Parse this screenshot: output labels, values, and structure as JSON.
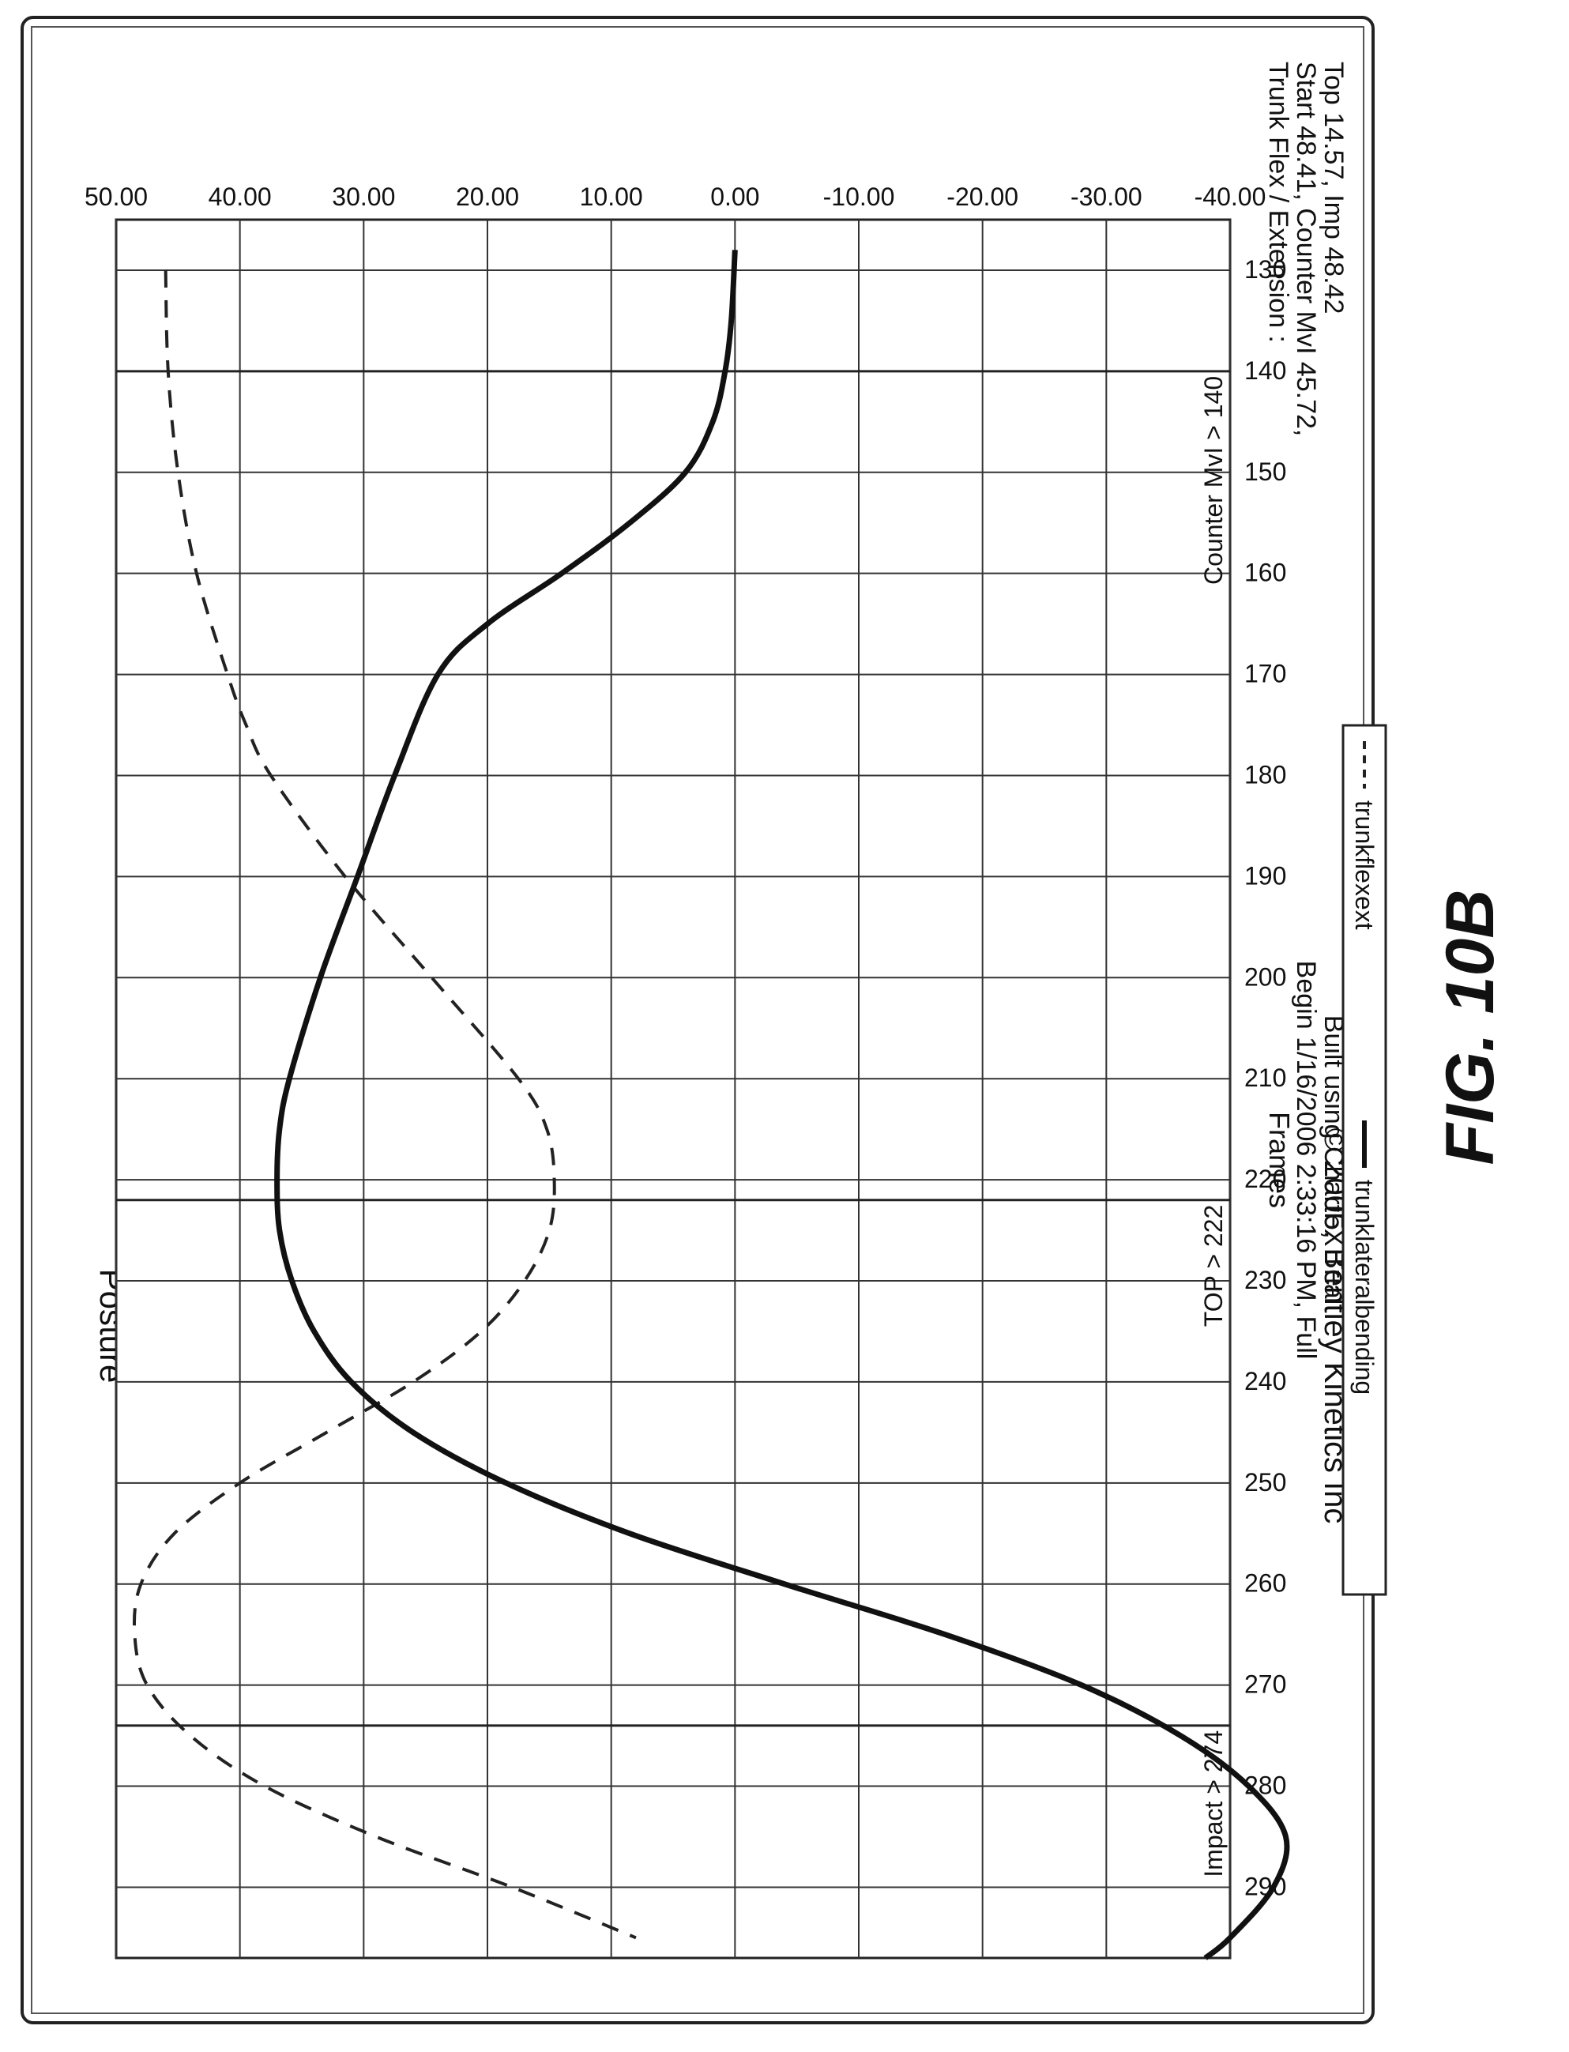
{
  "chart_data": {
    "type": "line",
    "copyright": "© 2006, Bentley Kinetics Inc",
    "title": "Posture",
    "xlabel": "Frames",
    "subtitle_lines": [
      "Begin 1/16/2006 2:33:16 PM, Full",
      "Built using ChartFX Trial"
    ],
    "info_lines": [
      "Trunk Flex / Extension :",
      "Start 48.41, Counter MvI 45.72,",
      "Top 14.57, Imp 48.42"
    ],
    "xlim": [
      125,
      297
    ],
    "ylim": [
      -40,
      50
    ],
    "x_ticks": [
      130,
      140,
      150,
      160,
      170,
      180,
      190,
      200,
      210,
      220,
      230,
      240,
      250,
      260,
      270,
      280,
      290
    ],
    "y_ticks": [
      50,
      40,
      30,
      20,
      10,
      0,
      -10,
      -20,
      -30,
      -40
    ],
    "y_tick_labels": [
      "50.00",
      "40.00",
      "30.00",
      "20.00",
      "10.00",
      "0.00",
      "-10.00",
      "-20.00",
      "-30.00",
      "-40.00"
    ],
    "markers": [
      {
        "x": 140,
        "label": "Counter MvI > 140"
      },
      {
        "x": 222,
        "label": "TOP > 222"
      },
      {
        "x": 274,
        "label": "Impact > 274"
      }
    ],
    "series": [
      {
        "name": "trunkflexext",
        "style": "dashed",
        "color": "#222222",
        "x": [
          130,
          140,
          150,
          160,
          170,
          175,
          180,
          190,
          200,
          210,
          215,
          220,
          225,
          230,
          235,
          240,
          245,
          250,
          255,
          260,
          265,
          270,
          275,
          280,
          285,
          290,
          295
        ],
        "y": [
          46.0,
          45.8,
          45.0,
          43.5,
          41.0,
          39.5,
          37.5,
          31.5,
          24.5,
          17.5,
          15.2,
          14.6,
          15.0,
          17.0,
          20.5,
          26.0,
          33.0,
          40.0,
          45.3,
          48.0,
          48.5,
          47.5,
          44.0,
          38.0,
          29.0,
          18.0,
          8.0
        ]
      },
      {
        "name": "trunklateralbending",
        "style": "solid",
        "color": "#111111",
        "x": [
          128,
          135,
          140,
          145,
          150,
          155,
          160,
          165,
          170,
          180,
          190,
          200,
          210,
          215,
          220,
          225,
          230,
          235,
          240,
          245,
          250,
          255,
          260,
          265,
          270,
          275,
          280,
          285,
          290,
          295,
          297
        ],
        "y": [
          0,
          0.3,
          0.8,
          1.8,
          4.0,
          8.5,
          14.0,
          20.0,
          24.0,
          27.5,
          30.5,
          33.5,
          36.0,
          36.8,
          37.0,
          36.8,
          35.8,
          34.0,
          31.0,
          26.0,
          18.5,
          8.5,
          -4.0,
          -17.0,
          -28.0,
          -36.0,
          -41.5,
          -44.5,
          -43.5,
          -40.0,
          -38.0
        ]
      }
    ],
    "legend": {
      "placement": "bottom",
      "entries": [
        "trunkflexext",
        "trunklateralbending"
      ]
    },
    "grid": true
  },
  "figure_label": "FIG. 10B"
}
